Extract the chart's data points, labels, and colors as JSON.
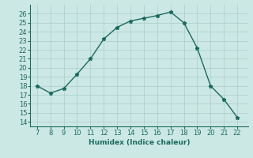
{
  "x": [
    7,
    8,
    9,
    10,
    11,
    12,
    13,
    14,
    15,
    16,
    17,
    18,
    19,
    20,
    21,
    22
  ],
  "y": [
    18,
    17.2,
    17.7,
    19.3,
    21.0,
    23.2,
    24.5,
    25.2,
    25.5,
    25.8,
    26.2,
    25.0,
    22.2,
    18.0,
    16.5,
    14.5
  ],
  "line_color": "#1a6b5e",
  "marker": "*",
  "marker_size": 3.5,
  "bg_color": "#cce8e4",
  "grid_color": "#aacccc",
  "xlabel": "Humidex (Indice chaleur)",
  "ylabel_ticks": [
    14,
    15,
    16,
    17,
    18,
    19,
    20,
    21,
    22,
    23,
    24,
    25,
    26
  ],
  "ylim": [
    13.5,
    27.0
  ],
  "xlim": [
    6.5,
    22.8
  ],
  "xticks": [
    7,
    8,
    9,
    10,
    11,
    12,
    13,
    14,
    15,
    16,
    17,
    18,
    19,
    20,
    21,
    22
  ],
  "axis_fontsize": 6.5,
  "tick_fontsize": 6.0
}
